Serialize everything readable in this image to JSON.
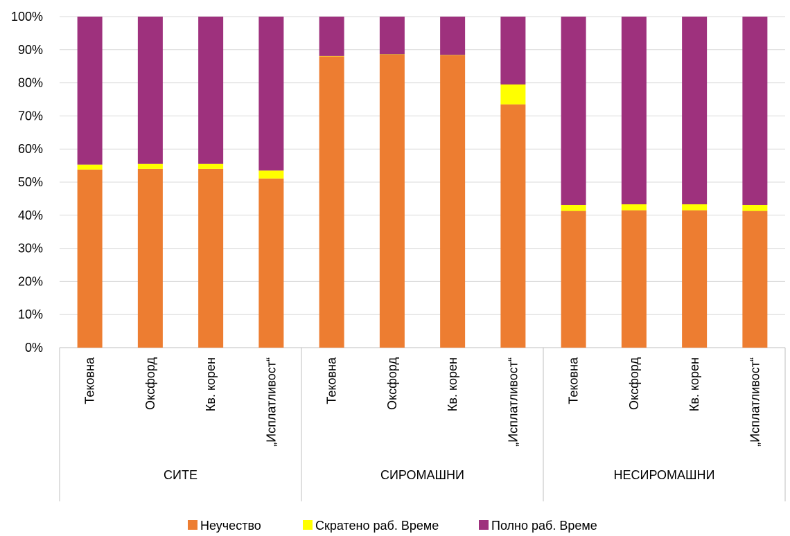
{
  "chart_data": {
    "type": "bar",
    "stacked": true,
    "percent": true,
    "groups": [
      {
        "label": "СИТЕ",
        "categories": [
          "Тековна",
          "Оксфорд",
          "Кв. корен",
          "„Исплатливост“"
        ]
      },
      {
        "label": "СИРОМАШНИ",
        "categories": [
          "Тековна",
          "Оксфорд",
          "Кв. корен",
          "„Исплатливост“"
        ]
      },
      {
        "label": "НЕСИРОМАШНИ",
        "categories": [
          "Тековна",
          "Оксфорд",
          "Кв. корен",
          "„Исплатливост“"
        ]
      }
    ],
    "series": [
      {
        "name": "Неучество",
        "color": "#ED7D31",
        "values": [
          53.8,
          54.0,
          54.0,
          51.1,
          88.0,
          88.5,
          88.3,
          73.5,
          41.3,
          41.5,
          41.5,
          41.3
        ]
      },
      {
        "name": "Скратено раб. Време",
        "color": "#FFFF00",
        "values": [
          1.5,
          1.5,
          1.5,
          2.4,
          0.1,
          0.1,
          0.1,
          6.0,
          1.8,
          1.8,
          1.8,
          1.8
        ]
      },
      {
        "name": "Полно раб. Време",
        "color": "#9E317D",
        "values": [
          44.7,
          44.5,
          44.5,
          46.5,
          11.9,
          11.4,
          11.6,
          20.5,
          56.9,
          56.7,
          56.7,
          56.9
        ]
      }
    ],
    "yticks": [
      "0%",
      "10%",
      "20%",
      "30%",
      "40%",
      "50%",
      "60%",
      "70%",
      "80%",
      "90%",
      "100%"
    ],
    "ylim": [
      0,
      100
    ],
    "grid": true,
    "legend_position": "bottom"
  }
}
